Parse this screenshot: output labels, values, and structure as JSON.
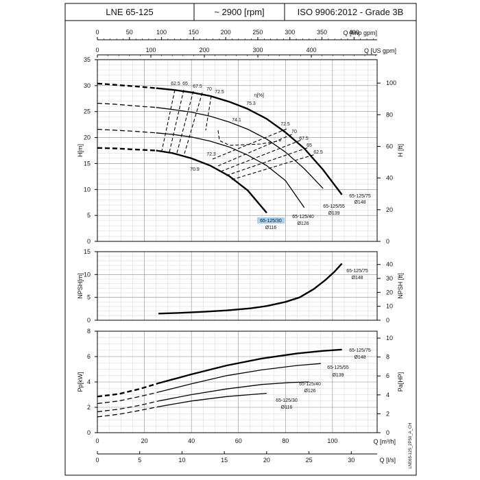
{
  "header": {
    "model": "LNE 65-125",
    "speed": "~ 2900 [rpm]",
    "standard": "ISO 9906:2012 - Grade 3B"
  },
  "side_code": "LNE65-125_2P50_A_CH",
  "chart_data": [
    {
      "type": "line",
      "name": "head",
      "top_axes": [
        {
          "label": "Q [Imp gpm]",
          "range": [
            0,
            436
          ],
          "ticks": [
            0,
            50,
            100,
            150,
            200,
            250,
            300,
            350,
            400
          ]
        },
        {
          "label": "Q [US gpm]",
          "range": [
            0,
            523
          ],
          "ticks": [
            0,
            100,
            200,
            300,
            400
          ]
        }
      ],
      "xlim": [
        0,
        119
      ],
      "ylabel": "H[m]",
      "ylim": [
        0,
        35
      ],
      "yticks": [
        0,
        5,
        10,
        15,
        20,
        25,
        30,
        35
      ],
      "y2label": "H [ft]",
      "y2lim": [
        0,
        114.8
      ],
      "y2ticks": [
        0,
        20,
        40,
        60,
        80,
        100
      ],
      "grid": true,
      "series": [
        {
          "name": "65-125/75",
          "diameter_label": "Ø148",
          "dashed_x": [
            0,
            6,
            12,
            18,
            25
          ],
          "dashed_y": [
            30.4,
            30.2,
            30.0,
            29.8,
            29.5
          ],
          "x": [
            25,
            32,
            40,
            48,
            56,
            64,
            72,
            80,
            88,
            96,
            104
          ],
          "y": [
            29.5,
            29.2,
            28.7,
            28.0,
            26.9,
            25.5,
            23.6,
            21.0,
            17.9,
            13.8,
            9.0
          ]
        },
        {
          "name": "65-125/55",
          "diameter_label": "Ø139",
          "dashed_x": [
            0,
            8,
            16,
            25
          ],
          "dashed_y": [
            26.6,
            26.4,
            26.1,
            25.8
          ],
          "x": [
            25,
            32,
            40,
            48,
            56,
            64,
            72,
            80,
            88,
            96
          ],
          "y": [
            25.8,
            25.4,
            24.9,
            24.1,
            23.0,
            21.6,
            19.7,
            17.2,
            14.0,
            10.2
          ]
        },
        {
          "name": "65-125/40",
          "diameter_label": "Ø126",
          "dashed_x": [
            0,
            8,
            16,
            25
          ],
          "dashed_y": [
            21.6,
            21.4,
            21.2,
            20.9
          ],
          "x": [
            25,
            32,
            40,
            48,
            56,
            64,
            72,
            80,
            88
          ],
          "y": [
            20.9,
            20.6,
            20.1,
            19.3,
            18.2,
            16.6,
            14.6,
            11.7,
            6.5
          ]
        },
        {
          "name": "65-125/30",
          "diameter_label": "Ø116",
          "dashed_x": [
            0,
            8,
            16,
            25
          ],
          "dashed_y": [
            18.0,
            17.9,
            17.7,
            17.5
          ],
          "x": [
            25,
            32,
            40,
            48,
            56,
            64,
            72
          ],
          "y": [
            17.5,
            17.0,
            16.0,
            14.6,
            12.6,
            9.8,
            5.5
          ]
        }
      ],
      "efficiency": {
        "label": "η[%]",
        "left_labels": [
          "62.5",
          "65",
          "67.5",
          "70",
          "72.5"
        ],
        "right_labels": [
          "72.5",
          "70",
          "67.5",
          "65",
          "62.5"
        ],
        "inner_labels": [
          "75.3",
          "74.1",
          "72.3",
          "70.9"
        ]
      }
    },
    {
      "type": "line",
      "name": "npsh",
      "xlim": [
        0,
        119
      ],
      "ylabel": "NPSH[m]",
      "ylim": [
        0,
        15
      ],
      "yticks": [
        0,
        5,
        10,
        15
      ],
      "y2label": "NPSH [ft]",
      "y2lim": [
        0,
        49.2
      ],
      "y2ticks": [
        0,
        10,
        20,
        30,
        40
      ],
      "grid": true,
      "series": [
        {
          "name": "65-125/75",
          "diameter_label": "Ø148",
          "x": [
            26,
            35,
            45,
            55,
            65,
            72,
            80,
            86,
            92,
            97,
            101,
            104
          ],
          "y": [
            1.45,
            1.6,
            1.85,
            2.15,
            2.6,
            3.1,
            4.0,
            5.0,
            6.8,
            8.8,
            10.7,
            12.4
          ]
        }
      ]
    },
    {
      "type": "line",
      "name": "power",
      "xlabel": "Q [m³/h]",
      "xlim": [
        0,
        119
      ],
      "xticks": [
        0,
        20,
        40,
        60,
        80,
        100
      ],
      "x2label": "Q [l/s]",
      "x2ticks": [
        0,
        5,
        10,
        15,
        20,
        25,
        30
      ],
      "ylabel": "Pp[kW]",
      "ylim": [
        0,
        8
      ],
      "yticks": [
        0,
        2,
        4,
        6,
        8
      ],
      "y2label": "Pa[HP]",
      "y2lim": [
        0,
        10.73
      ],
      "y2ticks": [
        0,
        2,
        4,
        6,
        8,
        10
      ],
      "grid": true,
      "series": [
        {
          "name": "65-125/75",
          "diameter_label": "Ø148",
          "dashed_x": [
            0,
            9,
            18,
            26
          ],
          "dashed_y": [
            2.85,
            3.05,
            3.45,
            3.9
          ],
          "x": [
            26,
            40,
            55,
            70,
            85,
            96,
            104
          ],
          "y": [
            3.9,
            4.6,
            5.3,
            5.85,
            6.25,
            6.45,
            6.55
          ]
        },
        {
          "name": "65-125/55",
          "diameter_label": "Ø139",
          "dashed_x": [
            0,
            9,
            18,
            26
          ],
          "dashed_y": [
            2.3,
            2.5,
            2.85,
            3.2
          ],
          "x": [
            26,
            40,
            55,
            70,
            85,
            95
          ],
          "y": [
            3.2,
            3.85,
            4.5,
            4.95,
            5.3,
            5.45
          ]
        },
        {
          "name": "65-125/40",
          "diameter_label": "Ø126",
          "dashed_x": [
            0,
            9,
            18,
            26
          ],
          "dashed_y": [
            1.65,
            1.85,
            2.15,
            2.5
          ],
          "x": [
            26,
            40,
            55,
            70,
            82,
            90
          ],
          "y": [
            2.5,
            3.0,
            3.45,
            3.8,
            3.95,
            4.0
          ]
        },
        {
          "name": "65-125/30",
          "diameter_label": "Ø116",
          "dashed_x": [
            0,
            9,
            18,
            26
          ],
          "dashed_y": [
            1.25,
            1.45,
            1.75,
            2.05
          ],
          "x": [
            26,
            40,
            55,
            65,
            72
          ],
          "y": [
            2.05,
            2.5,
            2.85,
            3.0,
            3.1
          ]
        }
      ]
    }
  ]
}
